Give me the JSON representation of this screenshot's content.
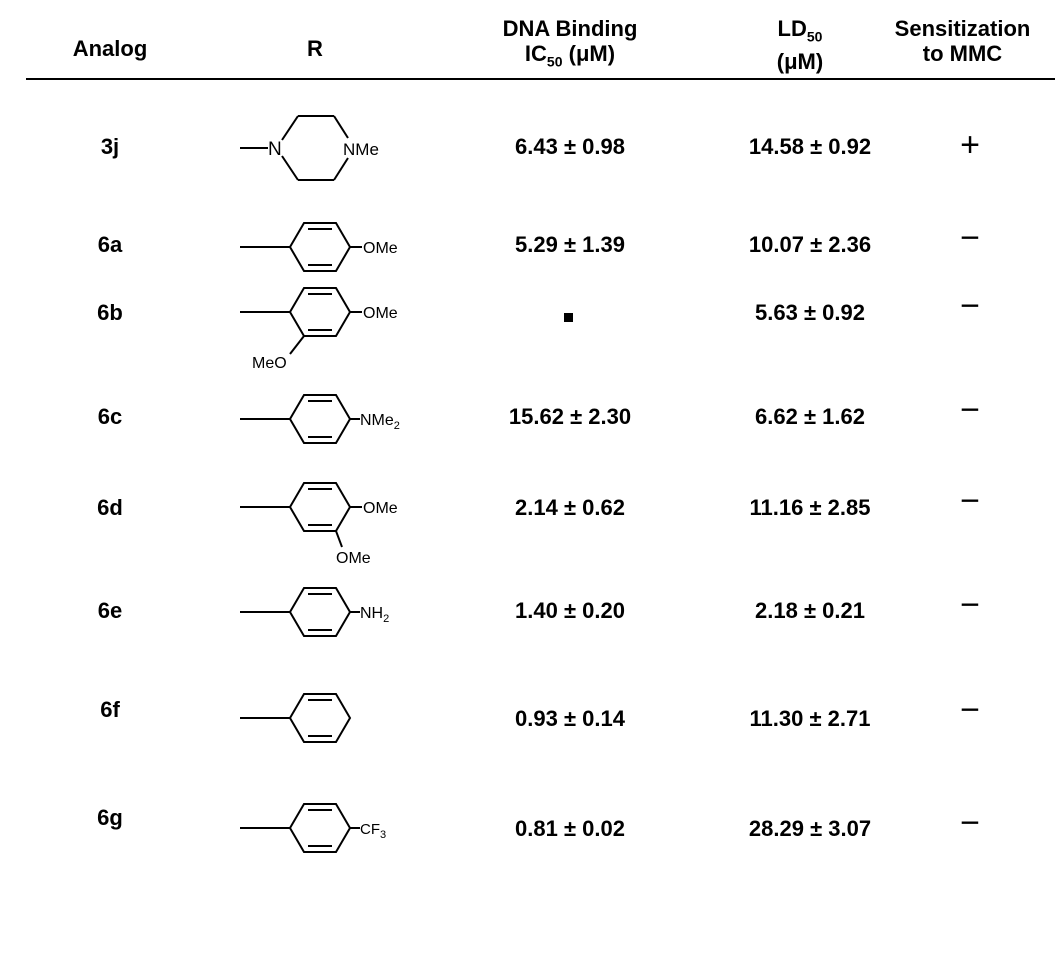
{
  "headers": {
    "analog": "Analog",
    "r": "R",
    "dna_line1": "DNA Binding",
    "dna_line2_ic": "IC",
    "dna_line2_sub": "50",
    "dna_line2_unit": " (μM)",
    "ld_line1_main": "LD",
    "ld_line1_sub": "50",
    "ld_line2": "(μM)",
    "sens_line1": "Sensitization",
    "sens_line2": "to MMC"
  },
  "rows": [
    {
      "analog": "3j",
      "r_substituent": "NMe",
      "dna_binding": "6.43 ± 0.98",
      "ld50": "14.58 ± 0.92",
      "sensitization": "+"
    },
    {
      "analog": "6a",
      "r_substituent": "OMe",
      "dna_binding": "5.29 ± 1.39",
      "ld50": "10.07 ± 2.36",
      "sensitization": "−"
    },
    {
      "analog": "6b",
      "r_substituent": "OMe",
      "r_substituent2": "MeO",
      "dna_binding": "",
      "ld50": "5.63 ± 0.92",
      "sensitization": "−"
    },
    {
      "analog": "6c",
      "r_substituent": "NMe",
      "r_substituent_sub": "2",
      "dna_binding": "15.62 ± 2.30",
      "ld50": "6.62 ± 1.62",
      "sensitization": "−"
    },
    {
      "analog": "6d",
      "r_substituent": "OMe",
      "r_substituent2": "OMe",
      "dna_binding": "2.14 ± 0.62",
      "ld50": "11.16 ± 2.85",
      "sensitization": "−"
    },
    {
      "analog": "6e",
      "r_substituent": "NH",
      "r_substituent_sub": "2",
      "dna_binding": "1.40 ± 0.20",
      "ld50": "2.18 ± 0.21",
      "sensitization": "−"
    },
    {
      "analog": "6f",
      "r_substituent": "",
      "dna_binding": "0.93 ± 0.14",
      "ld50": "11.30 ± 2.71",
      "sensitization": "−"
    },
    {
      "analog": "6g",
      "r_substituent": "CF",
      "r_substituent_sub": "3",
      "dna_binding": "0.81 ± 0.02",
      "ld50": "28.29 ± 3.07",
      "sensitization": "−"
    }
  ]
}
